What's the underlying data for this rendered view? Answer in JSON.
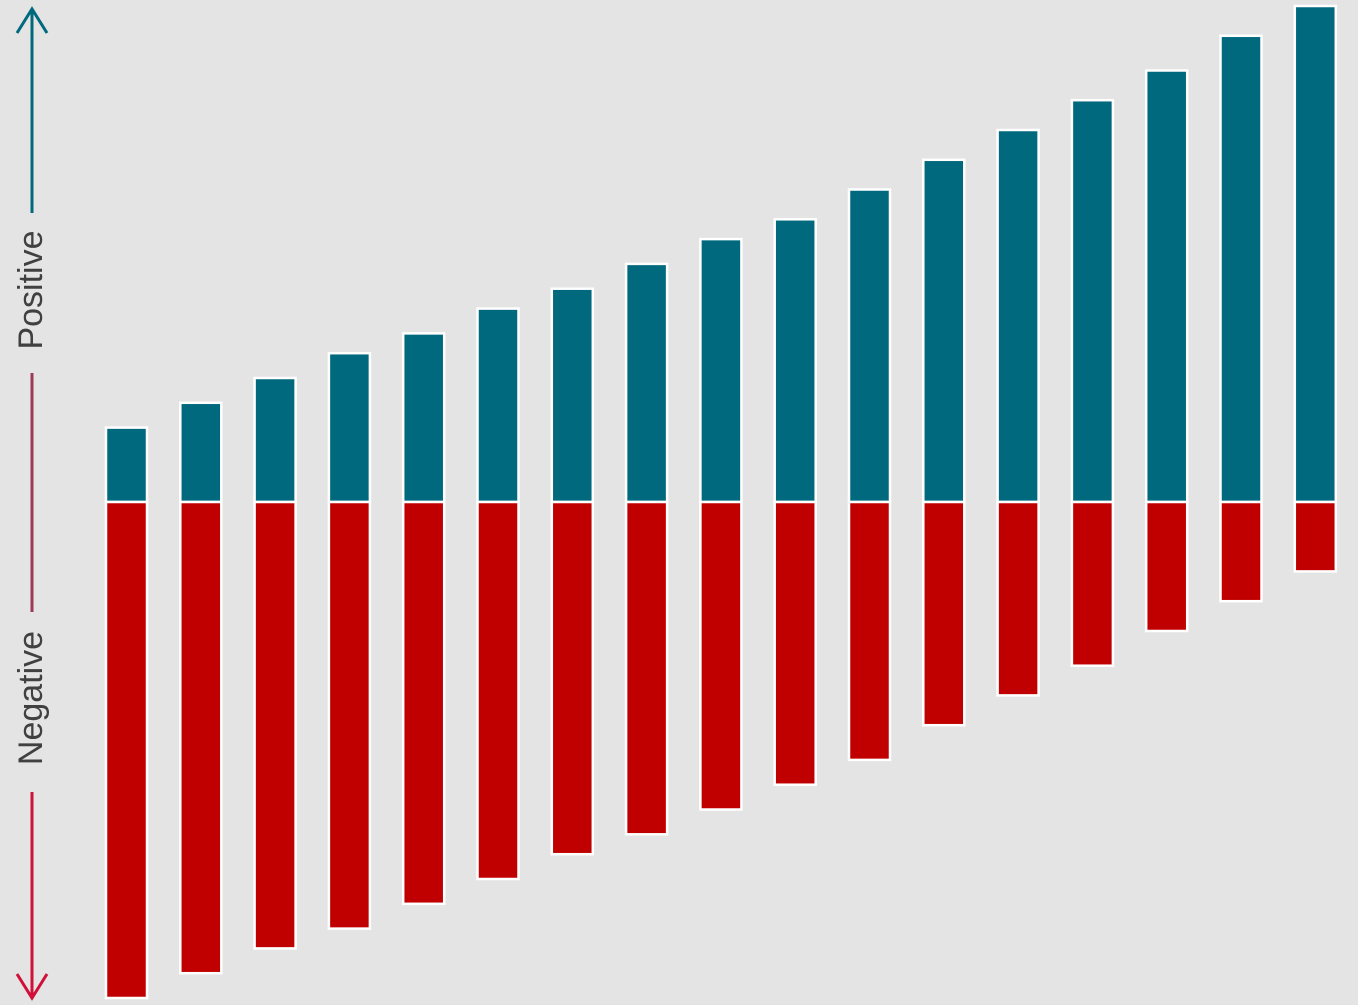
{
  "chart_data": {
    "type": "bar",
    "stacked": "diverging",
    "title": "",
    "xlabel": "",
    "ylabel": "",
    "axis_labels": {
      "positive": "Positive",
      "negative": "Negative"
    },
    "grid": false,
    "legend": "none",
    "series": [
      {
        "values": [
          15,
          20,
          25,
          30,
          34,
          39,
          43,
          48,
          53,
          57,
          63,
          69,
          75,
          81,
          87,
          94,
          100
        ]
      },
      {
        "values": [
          -100,
          -95,
          -90,
          -86,
          -81,
          -76,
          -71,
          -67,
          -62,
          -57,
          -52,
          -45,
          -39,
          -33,
          -26,
          -20,
          -14
        ]
      }
    ],
    "ylim": [
      -100,
      100
    ]
  },
  "colors": {
    "positive": "#00697e",
    "negative": "#c00000",
    "background": "#e4e4e4",
    "bar_outline": "#ffffff",
    "arrow_positive": "#00697e",
    "arrow_negative": "#d0103a",
    "label_text": "#404040"
  }
}
